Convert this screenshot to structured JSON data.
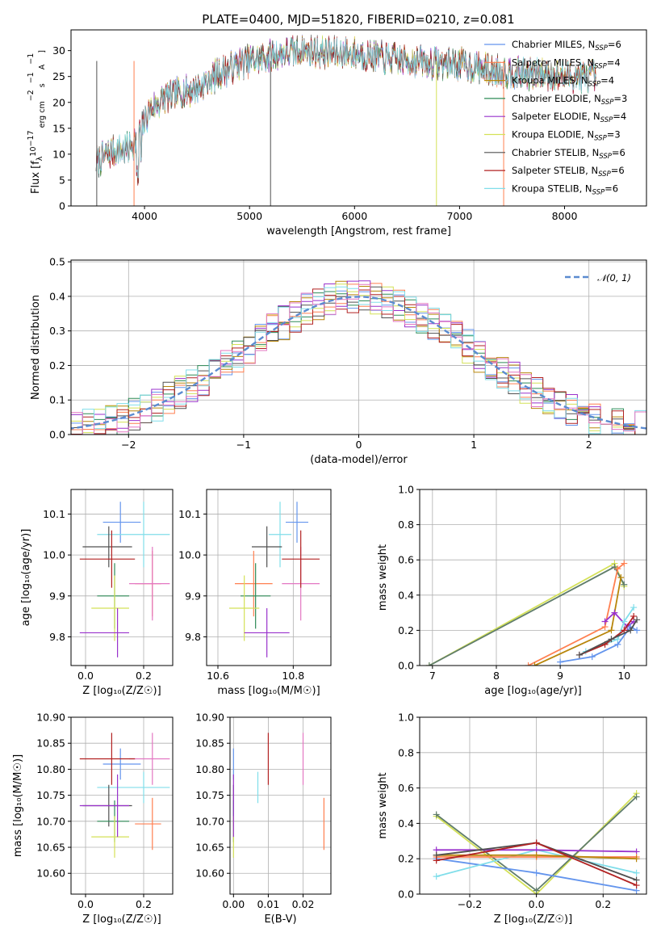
{
  "chart_data": [
    {
      "type": "line",
      "id": "spectrum",
      "title": "PLATE=0400, MJD=51820, FIBERID=0210, z=0.081",
      "xlabel": "wavelength [Angstrom, rest frame]",
      "ylabel_parts": [
        "Flux [f",
        "λ",
        "10",
        "−17",
        " erg cm",
        "−2",
        " s",
        "−1",
        " A",
        "−1",
        "]"
      ],
      "xlim": [
        3300,
        8780
      ],
      "ylim": [
        0,
        34
      ],
      "xticks": [
        4000,
        5000,
        6000,
        7000,
        8000
      ],
      "yticks": [
        0,
        5,
        10,
        15,
        20,
        25,
        30
      ],
      "legend_position": "right",
      "series": [
        {
          "name": "Chabrier MILES, N",
          "sub": "SSP",
          "val": "=6",
          "color": "#6495ed"
        },
        {
          "name": "Salpeter MILES, N",
          "sub": "SSP",
          "val": "=4",
          "color": "#ff7f50"
        },
        {
          "name": "Kroupa MILES, N",
          "sub": "SSP",
          "val": "=4",
          "color": "#b8860b"
        },
        {
          "name": "Chabrier ELODIE, N",
          "sub": "SSP",
          "val": "=3",
          "color": "#2e8b57"
        },
        {
          "name": "Salpeter ELODIE, N",
          "sub": "SSP",
          "val": "=4",
          "color": "#9932cc"
        },
        {
          "name": "Kroupa ELODIE, N",
          "sub": "SSP",
          "val": "=3",
          "color": "#d4e157"
        },
        {
          "name": "Chabrier STELIB, N",
          "sub": "SSP",
          "val": "=6",
          "color": "#505050"
        },
        {
          "name": "Salpeter STELIB, N",
          "sub": "SSP",
          "val": "=6",
          "color": "#b22222"
        },
        {
          "name": "Kroupa STELIB, N",
          "sub": "SSP",
          "val": "=6",
          "color": "#80deea"
        }
      ],
      "continuum": [
        [
          3540,
          8.5
        ],
        [
          3700,
          10.5
        ],
        [
          3850,
          11
        ],
        [
          3950,
          14
        ],
        [
          4050,
          18.5
        ],
        [
          4200,
          21
        ],
        [
          4350,
          22
        ],
        [
          4500,
          22.5
        ],
        [
          4700,
          25.5
        ],
        [
          4900,
          27.5
        ],
        [
          5100,
          28.5
        ],
        [
          5300,
          29.5
        ],
        [
          5500,
          30
        ],
        [
          5800,
          29.5
        ],
        [
          6000,
          29.5
        ],
        [
          6300,
          28.5
        ],
        [
          6600,
          28
        ],
        [
          6800,
          27.5
        ],
        [
          7000,
          27.5
        ],
        [
          7200,
          26.5
        ],
        [
          7400,
          26
        ],
        [
          7600,
          25.5
        ],
        [
          7800,
          25.5
        ],
        [
          8000,
          25
        ],
        [
          8200,
          25
        ],
        [
          8300,
          25
        ]
      ]
    },
    {
      "type": "histogram",
      "id": "residuals",
      "xlabel": "(data-model)/error",
      "ylabel": "Normed distribution",
      "xlim": [
        -2.5,
        2.5
      ],
      "ylim": [
        0,
        0.505
      ],
      "xticks": [
        -2,
        -1,
        0,
        1,
        2
      ],
      "yticks": [
        0.0,
        0.1,
        0.2,
        0.3,
        0.4,
        0.5
      ],
      "legend": "𝒩(0, 1)",
      "legend_position": "upper right",
      "bin_width": 0.1,
      "series_colors": [
        "#6495ed",
        "#ff7f50",
        "#b8860b",
        "#2e8b57",
        "#9932cc",
        "#d4e157",
        "#505050",
        "#b22222",
        "#80deea",
        "#e377c2"
      ]
    },
    {
      "type": "scatter",
      "id": "age-vs-Z",
      "xlabel": "Z [log₁₀(Z/Z☉)]",
      "ylabel": "age  [log₁₀(age/yr)]",
      "xlim": [
        -0.05,
        0.3
      ],
      "ylim": [
        9.73,
        10.16
      ],
      "xticks": [
        0.0,
        0.2
      ],
      "yticks": [
        9.8,
        9.9,
        10.0,
        10.1
      ]
    },
    {
      "type": "scatter",
      "id": "age-vs-mass",
      "xlabel": "mass [log₁₀(M/M☉)]",
      "xlim": [
        10.57,
        10.9
      ],
      "ylim": [
        9.73,
        10.16
      ],
      "xticks": [
        10.6,
        10.8
      ],
      "yticks": [
        9.8,
        9.9,
        10.0,
        10.1
      ]
    },
    {
      "type": "line",
      "id": "weight-vs-age",
      "xlabel": "age  [log₁₀(age/yr)]",
      "ylabel": "mass weight",
      "xlim": [
        6.8,
        10.35
      ],
      "ylim": [
        0,
        1
      ],
      "xticks": [
        7,
        8,
        9,
        10
      ],
      "yticks": [
        0.0,
        0.2,
        0.4,
        0.6,
        0.8,
        1.0
      ]
    },
    {
      "type": "scatter",
      "id": "mass-vs-Z",
      "xlabel": "Z [log₁₀(Z/Z☉)]",
      "ylabel": "mass [log₁₀(M/M☉)]",
      "xlim": [
        -0.05,
        0.3
      ],
      "ylim": [
        10.56,
        10.9
      ],
      "xticks": [
        0.0,
        0.2
      ],
      "yticks": [
        10.6,
        10.65,
        10.7,
        10.75,
        10.8,
        10.85,
        10.9
      ]
    },
    {
      "type": "scatter",
      "id": "mass-vs-ebv",
      "xlabel": "E(B-V)",
      "xlim": [
        -0.001,
        0.028
      ],
      "ylim": [
        10.56,
        10.9
      ],
      "xticks": [
        0.0,
        0.01,
        0.02
      ],
      "yticks": [
        10.6,
        10.65,
        10.7,
        10.75,
        10.8,
        10.85,
        10.9
      ]
    },
    {
      "type": "line",
      "id": "weight-vs-Z",
      "xlabel": "Z [log₁₀(Z/Z☉)]",
      "ylabel": "mass weight",
      "xlim": [
        -0.35,
        0.33
      ],
      "ylim": [
        0,
        1
      ],
      "xticks": [
        -0.2,
        0.0,
        0.2
      ],
      "yticks": [
        0.0,
        0.2,
        0.4,
        0.6,
        0.8,
        1.0
      ]
    }
  ],
  "models": [
    {
      "color": "#6495ed",
      "Z": 0.12,
      "Zlo": 0.06,
      "Zhi": 0.19,
      "age": 10.08,
      "ageErr": 0.05,
      "mass": 10.81,
      "massErr": 0.03,
      "ebv": 0.0,
      "ebvErr": 0.0
    },
    {
      "color": "#ff7f50",
      "Z": 0.23,
      "Zlo": 0.17,
      "Zhi": 0.26,
      "age": 9.93,
      "ageErr": 0.08,
      "mass": 10.695,
      "massErr": 0.05,
      "ebv": 0.026,
      "ebvErr": 0.0
    },
    {
      "color": "#e377c2",
      "Z": 0.23,
      "Zlo": 0.15,
      "Zhi": 0.29,
      "age": 9.93,
      "ageErr": 0.09,
      "mass": 10.82,
      "massErr": 0.05,
      "ebv": 0.02,
      "ebvErr": 0.0
    },
    {
      "color": "#80deea",
      "Z": 0.2,
      "Zlo": 0.04,
      "Zhi": 0.29,
      "age": 10.05,
      "ageErr": 0.08,
      "mass": 10.765,
      "massErr": 0.03,
      "ebv": 0.007,
      "ebvErr": 0.0
    },
    {
      "color": "#505050",
      "Z": 0.08,
      "Zlo": -0.01,
      "Zhi": 0.16,
      "age": 10.02,
      "ageErr": 0.05,
      "mass": 10.73,
      "massErr": 0.04,
      "ebv": 0.0,
      "ebvErr": 0.0
    },
    {
      "color": "#b22222",
      "Z": 0.09,
      "Zlo": -0.02,
      "Zhi": 0.17,
      "age": 9.99,
      "ageErr": 0.07,
      "mass": 10.82,
      "massErr": 0.05,
      "ebv": 0.01,
      "ebvErr": 0.0
    },
    {
      "color": "#2e8b57",
      "Z": 0.1,
      "Zlo": 0.04,
      "Zhi": 0.15,
      "age": 9.9,
      "ageErr": 0.08,
      "mass": 10.7,
      "massErr": 0.04,
      "ebv": 0.0,
      "ebvErr": 0.0
    },
    {
      "color": "#d4e157",
      "Z": 0.1,
      "Zlo": 0.02,
      "Zhi": 0.15,
      "age": 9.87,
      "ageErr": 0.08,
      "mass": 10.67,
      "massErr": 0.04,
      "ebv": 0.0,
      "ebvErr": 0.0
    },
    {
      "color": "#9932cc",
      "Z": 0.11,
      "Zlo": -0.02,
      "Zhi": 0.15,
      "age": 9.81,
      "ageErr": 0.06,
      "mass": 10.73,
      "massErr": 0.06,
      "ebv": 0.0,
      "ebvErr": 0.0
    }
  ],
  "weight_age_lines": [
    {
      "color": "#d4e157",
      "points": [
        [
          6.95,
          0.0
        ],
        [
          9.85,
          0.58
        ],
        [
          10.0,
          0.45
        ]
      ]
    },
    {
      "color": "#607d6b",
      "points": [
        [
          6.95,
          0.0
        ],
        [
          9.85,
          0.56
        ],
        [
          10.0,
          0.46
        ]
      ]
    },
    {
      "color": "#ff7f50",
      "points": [
        [
          8.5,
          0.0
        ],
        [
          9.7,
          0.22
        ],
        [
          9.9,
          0.55
        ],
        [
          10.0,
          0.58
        ]
      ]
    },
    {
      "color": "#b8860b",
      "points": [
        [
          8.6,
          0.0
        ],
        [
          9.8,
          0.2
        ],
        [
          9.95,
          0.5
        ]
      ]
    },
    {
      "color": "#9932cc",
      "points": [
        [
          9.7,
          0.25
        ],
        [
          9.85,
          0.3
        ],
        [
          10.05,
          0.22
        ],
        [
          10.15,
          0.25
        ]
      ]
    },
    {
      "color": "#6495ed",
      "points": [
        [
          9.0,
          0.02
        ],
        [
          9.5,
          0.05
        ],
        [
          9.9,
          0.12
        ],
        [
          10.1,
          0.22
        ],
        [
          10.2,
          0.2
        ]
      ]
    },
    {
      "color": "#80deea",
      "points": [
        [
          9.4,
          0.08
        ],
        [
          9.9,
          0.15
        ],
        [
          10.0,
          0.25
        ],
        [
          10.15,
          0.33
        ]
      ]
    },
    {
      "color": "#b22222",
      "points": [
        [
          9.3,
          0.06
        ],
        [
          9.7,
          0.12
        ],
        [
          10.0,
          0.2
        ],
        [
          10.15,
          0.28
        ]
      ]
    },
    {
      "color": "#505050",
      "points": [
        [
          9.3,
          0.06
        ],
        [
          9.8,
          0.15
        ],
        [
          10.1,
          0.2
        ],
        [
          10.2,
          0.26
        ]
      ]
    }
  ],
  "weight_Z_lines": [
    {
      "color": "#d4e157",
      "points": [
        [
          -0.3,
          0.44
        ],
        [
          0.0,
          0.0
        ],
        [
          0.3,
          0.57
        ]
      ]
    },
    {
      "color": "#607d6b",
      "points": [
        [
          -0.3,
          0.45
        ],
        [
          0.0,
          0.02
        ],
        [
          0.3,
          0.55
        ]
      ]
    },
    {
      "color": "#6495ed",
      "points": [
        [
          -0.3,
          0.2
        ],
        [
          0.0,
          0.12
        ],
        [
          0.3,
          0.02
        ]
      ]
    },
    {
      "color": "#80deea",
      "points": [
        [
          -0.3,
          0.1
        ],
        [
          0.0,
          0.25
        ],
        [
          0.3,
          0.12
        ]
      ]
    },
    {
      "color": "#9932cc",
      "points": [
        [
          -0.3,
          0.25
        ],
        [
          0.0,
          0.25
        ],
        [
          0.3,
          0.24
        ]
      ]
    },
    {
      "color": "#ff7f50",
      "points": [
        [
          -0.3,
          0.21
        ],
        [
          0.0,
          0.21
        ],
        [
          0.3,
          0.21
        ]
      ]
    },
    {
      "color": "#b8860b",
      "points": [
        [
          -0.3,
          0.22
        ],
        [
          0.0,
          0.22
        ],
        [
          0.3,
          0.2
        ]
      ]
    },
    {
      "color": "#505050",
      "points": [
        [
          -0.3,
          0.22
        ],
        [
          0.0,
          0.29
        ],
        [
          0.3,
          0.08
        ]
      ]
    },
    {
      "color": "#b22222",
      "points": [
        [
          -0.3,
          0.19
        ],
        [
          0.0,
          0.29
        ],
        [
          0.3,
          0.05
        ]
      ]
    }
  ]
}
